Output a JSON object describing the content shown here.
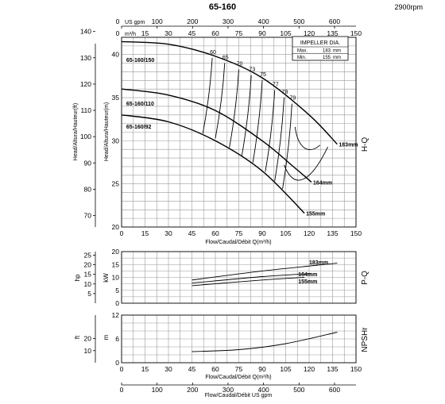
{
  "header": {
    "title": "65-160",
    "speed": "2900rpm"
  },
  "impeller_box": {
    "title": "IMPELLER DIA.",
    "max_label": "Max.",
    "max_value": "183",
    "max_unit": "mm",
    "min_label": "Min.",
    "min_value": "155",
    "min_unit": "mm"
  },
  "chart_data": [
    {
      "type": "line",
      "name_label": "H-Q",
      "xlabel": "Flow/Caudal/Débit Q(m³/h)",
      "ylabel_ft": "Head/Altura/Hauteur(ft)",
      "ylabel_m": "Head/Altura/Hauteur(m)",
      "top_axis_gpm": {
        "unit": "US gpm",
        "ticks": [
          0,
          100,
          200,
          300,
          400,
          500,
          600
        ]
      },
      "top_axis_m3h": {
        "unit": "m³/h",
        "ticks": [
          0,
          15,
          30,
          45,
          60,
          75,
          90,
          105,
          120,
          135,
          150
        ]
      },
      "x_ticks": [
        0,
        15,
        30,
        45,
        60,
        75,
        90,
        105,
        120,
        135,
        150
      ],
      "y_m_ticks": [
        20,
        25,
        30,
        35,
        40
      ],
      "y_ft_ticks": [
        70,
        80,
        90,
        100,
        110,
        120,
        130,
        140
      ],
      "xlim": [
        0,
        150
      ],
      "ylim": [
        20,
        42
      ],
      "series": [
        {
          "name": "65-160/150",
          "end_label": "183mm",
          "x": [
            0,
            30,
            60,
            90,
            120,
            138
          ],
          "y": [
            41.5,
            41.2,
            39.8,
            37.3,
            33.0,
            29.6
          ]
        },
        {
          "name": "65-160/110",
          "end_label": "164mm",
          "x": [
            0,
            30,
            60,
            90,
            110,
            121.5
          ],
          "y": [
            36.0,
            35.3,
            33.5,
            30.0,
            27.0,
            25.2
          ]
        },
        {
          "name": "65-160/92",
          "end_label": "155mm",
          "x": [
            0,
            30,
            60,
            90,
            117
          ],
          "y": [
            33.0,
            32.2,
            30.0,
            26.5,
            21.6
          ]
        }
      ],
      "efficiency_labels": [
        "60",
        "65",
        "70",
        "73",
        "75",
        "77",
        "78",
        "79"
      ]
    },
    {
      "type": "line",
      "name_label": "P-Q",
      "y_hp_label": "hp",
      "y_kw_label": "kW",
      "y_kw_ticks": [
        0,
        5,
        10,
        15,
        20
      ],
      "y_hp_ticks": [
        5,
        10,
        15,
        20,
        25
      ],
      "xlim": [
        0,
        150
      ],
      "ylim": [
        0,
        20
      ],
      "series": [
        {
          "name": "183mm",
          "x": [
            45,
            90,
            138
          ],
          "y": [
            9.0,
            12.5,
            15.5
          ]
        },
        {
          "name": "164mm",
          "x": [
            45,
            90,
            121.5
          ],
          "y": [
            7.8,
            10.3,
            11.5
          ]
        },
        {
          "name": "155mm",
          "x": [
            45,
            90,
            117
          ],
          "y": [
            6.8,
            9.0,
            10.0
          ]
        }
      ]
    },
    {
      "type": "line",
      "name_label": "NPSHr",
      "y_m_label": "m",
      "y_ft_label": "ft",
      "y_m_ticks": [
        0,
        6,
        12
      ],
      "y_ft_ticks": [
        10,
        20
      ],
      "xlabel": "Flow/Caudal/Débit Q(m³/h)",
      "xlim": [
        0,
        150
      ],
      "ylim": [
        0,
        12
      ],
      "series": [
        {
          "name": "NPSHr",
          "x": [
            45,
            75,
            105,
            138
          ],
          "y": [
            2.8,
            3.3,
            4.8,
            7.7
          ]
        }
      ]
    },
    {
      "type": "axis",
      "xlabel": "Flow/Caudal/Débit  US gpm",
      "ticks": [
        0,
        100,
        200,
        300,
        400,
        500,
        600
      ]
    }
  ]
}
